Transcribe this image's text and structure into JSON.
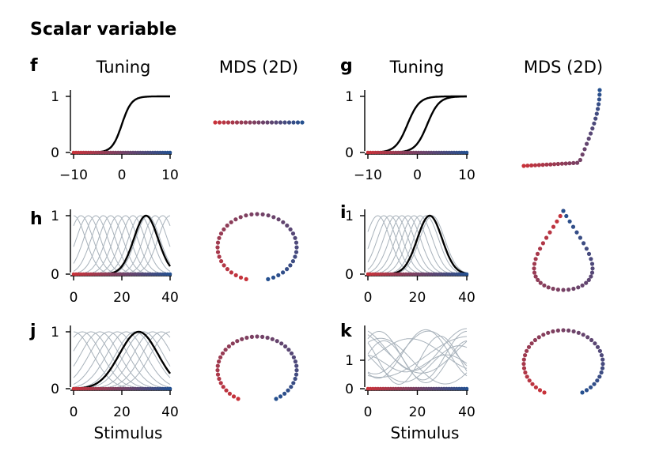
{
  "figure_title": "Scalar variable",
  "column_headers": {
    "left_tuning": "Tuning",
    "left_mds": "MDS (2D)",
    "right_tuning": "Tuning",
    "right_mds": "MDS (2D)"
  },
  "stimulus_label": "Stimulus",
  "colors": {
    "start": "#c8323a",
    "end": "#25508f",
    "highlight": "#000000",
    "background_curves": "#a8b2bb"
  },
  "chart_data": [
    {
      "panel": "f",
      "type": "line",
      "series": [
        {
          "kind": "sigmoid",
          "center": 0,
          "slope": 1,
          "highlight": true
        }
      ],
      "xlim": [
        -10,
        10
      ],
      "ylim": [
        0,
        1
      ],
      "xticks": [
        "−10",
        "0",
        "10"
      ],
      "yticks": [
        "0",
        "1"
      ],
      "mds": {
        "shape": "line",
        "points": 21
      }
    },
    {
      "panel": "g",
      "type": "line",
      "series": [
        {
          "kind": "sigmoid",
          "center": -2,
          "slope": 1.2,
          "highlight": true
        },
        {
          "kind": "sigmoid",
          "center": 2,
          "slope": 1.2,
          "highlight": true
        }
      ],
      "xlim": [
        -10,
        10
      ],
      "ylim": [
        0,
        1
      ],
      "xticks": [
        "−10",
        "0",
        "10"
      ],
      "yticks": [
        "0",
        "1"
      ],
      "mds": {
        "shape": "L",
        "points": 30
      }
    },
    {
      "panel": "h",
      "type": "line",
      "series_kind": "gaussian",
      "width": 5,
      "n_background": 14,
      "background_centers_range": [
        0,
        40
      ],
      "highlight_center": 30,
      "xlim": [
        0,
        40
      ],
      "ylim": [
        0,
        1
      ],
      "xticks": [
        "0",
        "20",
        "40"
      ],
      "yticks": [
        "0",
        "1"
      ],
      "mds": {
        "shape": "open circle",
        "points": 41
      }
    },
    {
      "panel": "i",
      "type": "line",
      "series_kind": "gaussian",
      "width": 5,
      "n_background": 10,
      "background_centers_range": [
        4,
        26
      ],
      "highlight_center": 25,
      "xlim": [
        0,
        40
      ],
      "ylim": [
        0,
        1
      ],
      "xticks": [
        "0",
        "20",
        "40"
      ],
      "yticks": [
        "0",
        "1"
      ],
      "mds": {
        "shape": "teardrop",
        "points": 41
      }
    },
    {
      "panel": "j",
      "type": "line",
      "series_kind": "gaussian",
      "width": 8,
      "n_background": 12,
      "background_centers_range": [
        0,
        40
      ],
      "highlight_center": 27,
      "xlim": [
        0,
        40
      ],
      "ylim": [
        0,
        1
      ],
      "xticks": [
        "0",
        "20",
        "40"
      ],
      "yticks": [
        "0",
        "1"
      ],
      "mds": {
        "shape": "open circle",
        "points": 41
      }
    },
    {
      "panel": "k",
      "type": "line",
      "series_kind": "random smooth",
      "n_background": 12,
      "xlim": [
        0,
        40
      ],
      "ylim": [
        0,
        2
      ],
      "xticks": [
        "0",
        "20",
        "40"
      ],
      "yticks": [
        "0",
        "1"
      ],
      "mds": {
        "shape": "open circle",
        "points": 41
      }
    }
  ]
}
